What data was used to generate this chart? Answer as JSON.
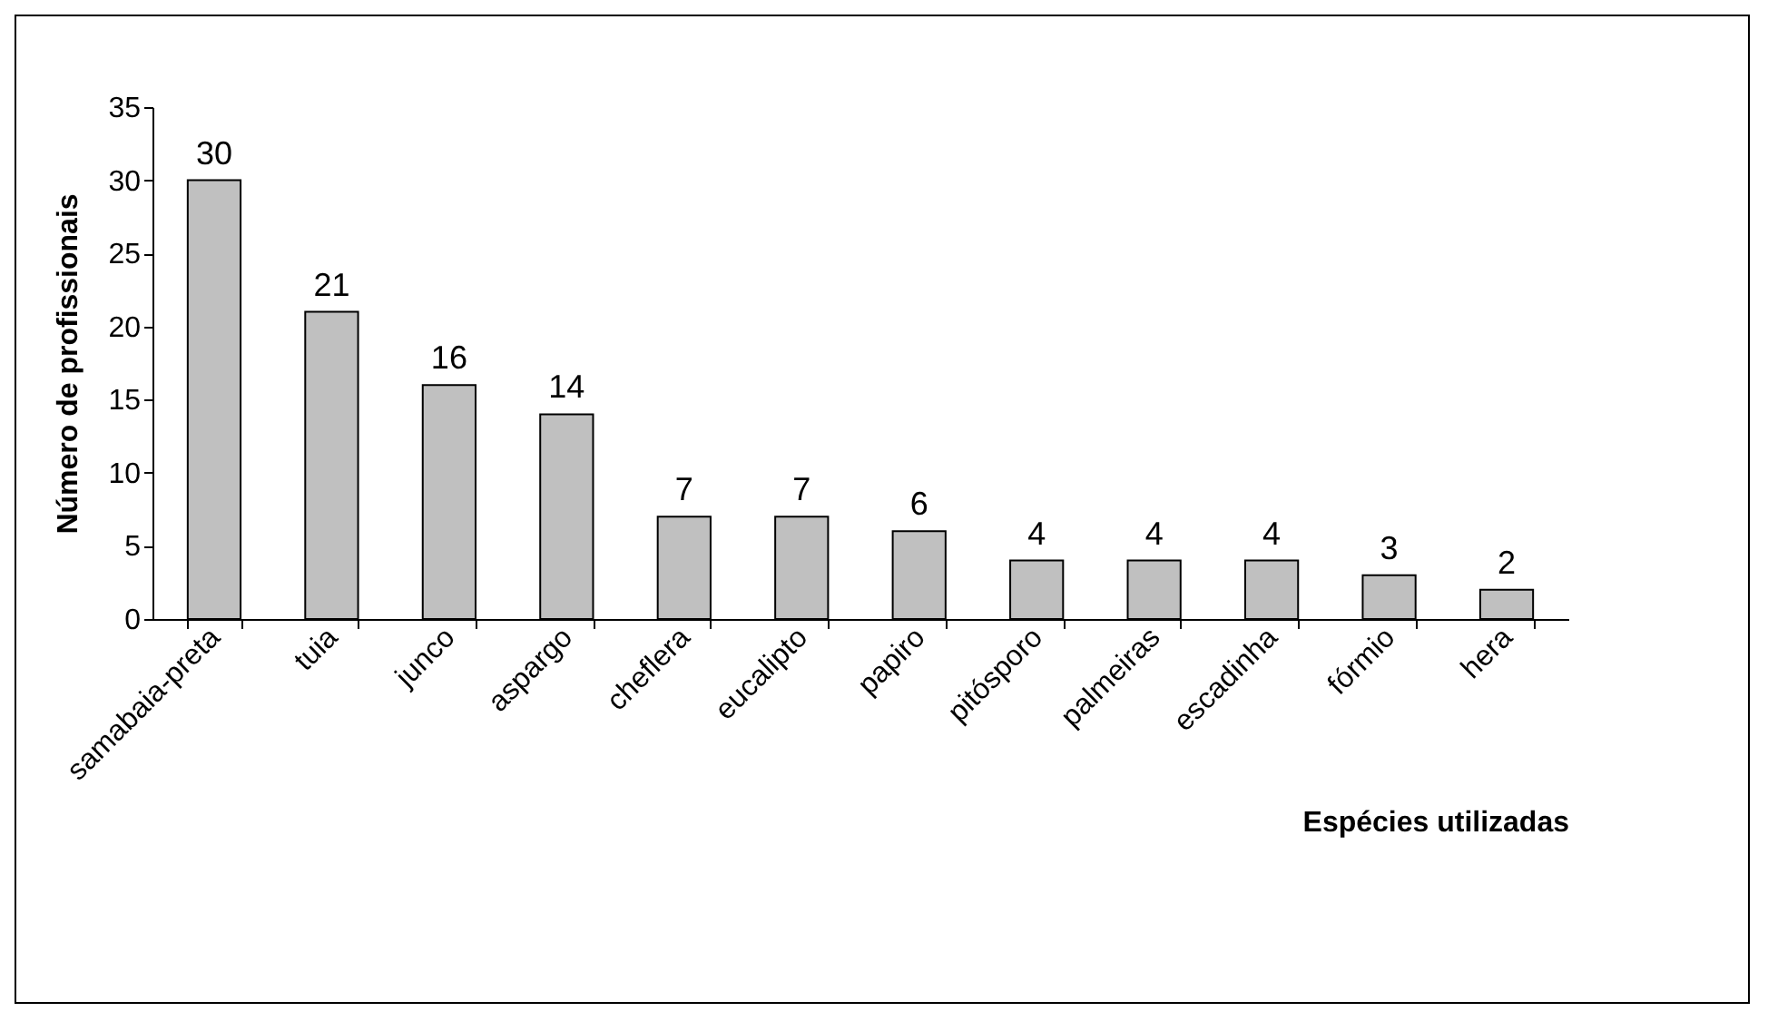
{
  "chart_data": {
    "type": "bar",
    "xlabel": "Espécies utilizadas",
    "ylabel": "Número de profissionais",
    "categories": [
      "samabaia-preta",
      "tuia",
      "junco",
      "aspargo",
      "cheflera",
      "eucalipto",
      "papiro",
      "pitósporo",
      "palmeiras",
      "escadinha",
      "fórmio",
      "hera"
    ],
    "values": [
      30,
      21,
      16,
      14,
      7,
      7,
      6,
      4,
      4,
      4,
      3,
      2
    ],
    "color": "#c0c0c0",
    "ylim": [
      0,
      35
    ],
    "yticks": [
      0,
      5,
      10,
      15,
      20,
      25,
      30,
      35
    ],
    "grid": false,
    "data_labels": true
  }
}
